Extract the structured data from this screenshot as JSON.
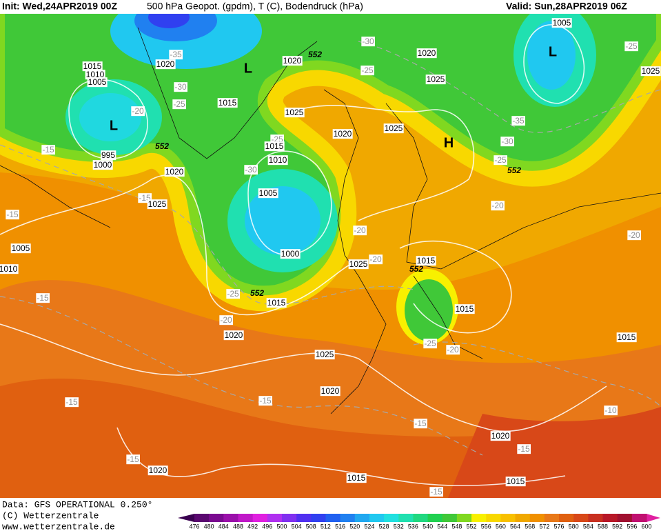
{
  "header": {
    "init": "Init: Wed,24APR2019 00Z",
    "title": "500 hPa Geopot. (gpdm), T (C), Bodendruck (hPa)",
    "valid": "Valid: Sun,28APR2019 06Z"
  },
  "footer": {
    "data": "Data: GFS OPERATIONAL 0.250°",
    "copyright": "(C) Wetterzentrale",
    "url": "www.wetterzentrale.de"
  },
  "colorbar": {
    "ticks": [
      476,
      480,
      484,
      488,
      492,
      496,
      500,
      504,
      508,
      512,
      516,
      520,
      524,
      528,
      532,
      536,
      540,
      544,
      548,
      552,
      556,
      560,
      564,
      568,
      572,
      576,
      580,
      584,
      588,
      592,
      596,
      600
    ],
    "colors": [
      "#5a0870",
      "#7a0a90",
      "#9a10aa",
      "#c018c8",
      "#e020e0",
      "#b030f0",
      "#8030f0",
      "#5030f0",
      "#3040f0",
      "#2060f0",
      "#2080f0",
      "#20a8f0",
      "#20c8f0",
      "#20e0e0",
      "#20e0b0",
      "#20d880",
      "#20d050",
      "#40c838",
      "#80d820",
      "#f8f000",
      "#f8d800",
      "#f8c000",
      "#f0a800",
      "#f09000",
      "#e87818",
      "#e06010",
      "#d84818",
      "#c83020",
      "#b81828",
      "#a01030",
      "#c01070"
    ],
    "under": "#3a0050",
    "over": "#e020a0"
  },
  "map_labels": [
    "1015",
    "1010",
    "1005",
    "L",
    "-20",
    "995",
    "1000",
    "-15",
    "-35",
    "1020",
    "-30",
    "-25",
    "L",
    "1015",
    "552",
    "1020",
    "-15",
    "1025",
    "-15",
    "1005",
    "1010",
    "-15",
    "1020",
    "552",
    "-30",
    "-25",
    "1025",
    "1020",
    "-25",
    "1015",
    "1010",
    "-30",
    "1005",
    "1000",
    "-25",
    "552",
    "1015",
    "-20",
    "1020",
    "1020",
    "1025",
    "1025",
    "H",
    "1005",
    "L",
    "-25",
    "1025",
    "-35",
    "-30",
    "-25",
    "552",
    "-20",
    "-20",
    "-20",
    "1025",
    "1015",
    "552",
    "1015",
    "1015",
    "-20",
    "-25",
    "-20",
    "1025",
    "1020",
    "-15",
    "-15",
    "-15",
    "1020",
    "-15",
    "-10",
    "-15",
    "1020",
    "1015",
    "1015",
    "-15"
  ]
}
